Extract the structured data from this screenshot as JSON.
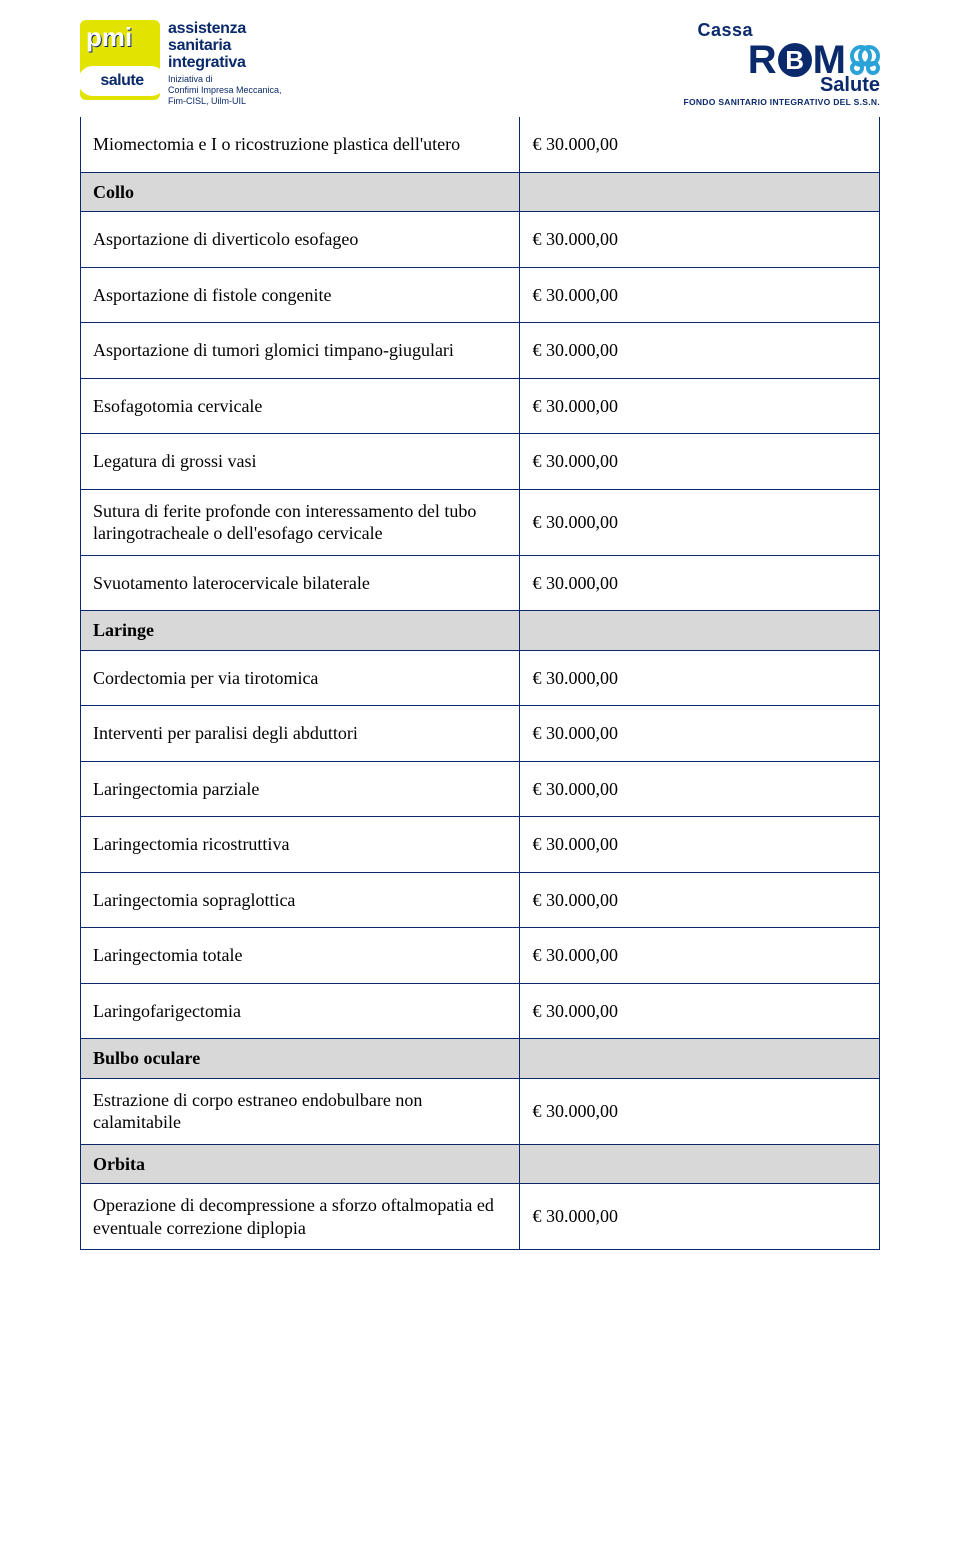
{
  "header": {
    "left": {
      "pmi_top": "pmi",
      "pmi_bubble": "salute",
      "asi_line1": "assistenza",
      "asi_line2": "sanitaria",
      "asi_line3": "integrativa",
      "asi_sub1": "Iniziativa di",
      "asi_sub2": "Confimi Impresa Meccanica,",
      "asi_sub3": "Fim-CISL, Uilm-UIL"
    },
    "right": {
      "cassa": "Cassa",
      "rbm_r": "R",
      "rbm_b": "B",
      "rbm_m": "M",
      "salute": "Salute",
      "fondo": "FONDO SANITARIO INTEGRATIVO DEL S.S.N."
    }
  },
  "table": {
    "colors": {
      "border": "#0a2a6c",
      "section_bg": "#d8d8d8",
      "text": "#000000"
    },
    "rows": [
      {
        "type": "item",
        "topless": true,
        "label": "Miomectomia e I o ricostruzione plastica dell'utero",
        "amount": "€ 30.000,00"
      },
      {
        "type": "section",
        "label": "Collo"
      },
      {
        "type": "item",
        "label": "Asportazione di diverticolo esofageo",
        "amount": "€ 30.000,00"
      },
      {
        "type": "item",
        "label": "Asportazione di fistole congenite",
        "amount": "€ 30.000,00"
      },
      {
        "type": "item",
        "label": "Asportazione di tumori glomici timpano-giugulari",
        "amount": "€ 30.000,00"
      },
      {
        "type": "item",
        "label": "Esofagotomia cervicale",
        "amount": "€ 30.000,00"
      },
      {
        "type": "item",
        "label": "Legatura di grossi vasi",
        "amount": "€ 30.000,00"
      },
      {
        "type": "item",
        "tight": true,
        "label": "Sutura di ferite profonde con interessamento del tubo laringotracheale o dell'esofago cervicale",
        "amount": "€ 30.000,00"
      },
      {
        "type": "item",
        "label": "Svuotamento laterocervicale bilaterale",
        "amount": "€ 30.000,00"
      },
      {
        "type": "section",
        "label": "Laringe"
      },
      {
        "type": "item",
        "label": "Cordectomia per via tirotomica",
        "amount": "€ 30.000,00"
      },
      {
        "type": "item",
        "label": "Interventi per paralisi degli abduttori",
        "amount": "€ 30.000,00"
      },
      {
        "type": "item",
        "label": "Laringectomia parziale",
        "amount": "€ 30.000,00"
      },
      {
        "type": "item",
        "label": "Laringectomia ricostruttiva",
        "amount": "€ 30.000,00"
      },
      {
        "type": "item",
        "label": "Laringectomia sopraglottica",
        "amount": "€ 30.000,00"
      },
      {
        "type": "item",
        "label": "Laringectomia totale",
        "amount": "€ 30.000,00"
      },
      {
        "type": "item",
        "label": "Laringofarigectomia",
        "amount": "€ 30.000,00"
      },
      {
        "type": "section",
        "label": "Bulbo oculare"
      },
      {
        "type": "item",
        "tight": true,
        "label": "Estrazione di corpo estraneo endobulbare non calamitabile",
        "amount": "€ 30.000,00"
      },
      {
        "type": "section",
        "label": "Orbita"
      },
      {
        "type": "item",
        "tight": true,
        "label": "Operazione di decompressione a sforzo oftalmopatia ed eventuale correzione diplopia",
        "amount": "€ 30.000,00"
      }
    ]
  }
}
